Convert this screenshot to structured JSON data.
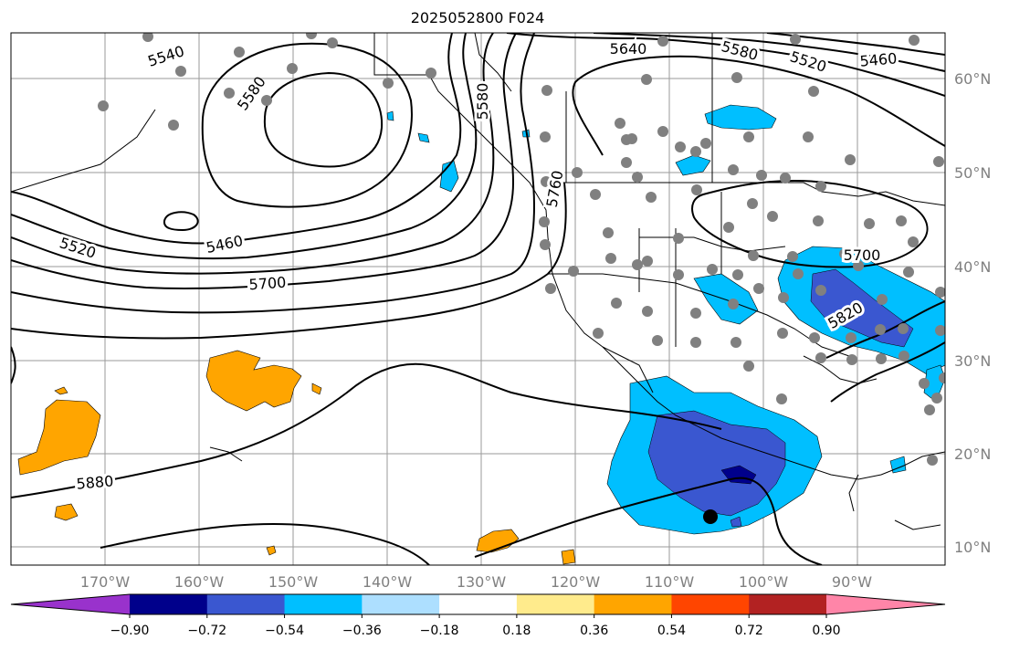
{
  "title": "2025052800 F024",
  "x_axis": {
    "ticks": [
      "170°W",
      "160°W",
      "150°W",
      "140°W",
      "130°W",
      "120°W",
      "110°W",
      "100°W",
      "90°W"
    ]
  },
  "y_axis": {
    "ticks": [
      "60°N",
      "50°N",
      "40°N",
      "30°N",
      "20°N",
      "10°N"
    ]
  },
  "contour_labels": [
    "5540",
    "5580",
    "5640",
    "5580",
    "5520",
    "5460",
    "5580",
    "5520",
    "5460",
    "5700",
    "5760",
    "5700",
    "5820",
    "5880"
  ],
  "colorbar": {
    "labels": [
      "−0.90",
      "−0.72",
      "−0.54",
      "−0.36",
      "−0.18",
      "0.18",
      "0.36",
      "0.54",
      "0.72",
      "0.90"
    ],
    "colors": [
      "#9932CC",
      "#00008B",
      "#3A57D0",
      "#00BFFF",
      "#ADDFFF",
      "#FFFFFF",
      "#FFEB8C",
      "#FFA500",
      "#FF4500",
      "#B22222",
      "#FF85A8"
    ]
  },
  "colors": {
    "contour": "#000000",
    "grid": "#9a9a9a",
    "station_dot": "#808080",
    "marker": "#000000"
  }
}
